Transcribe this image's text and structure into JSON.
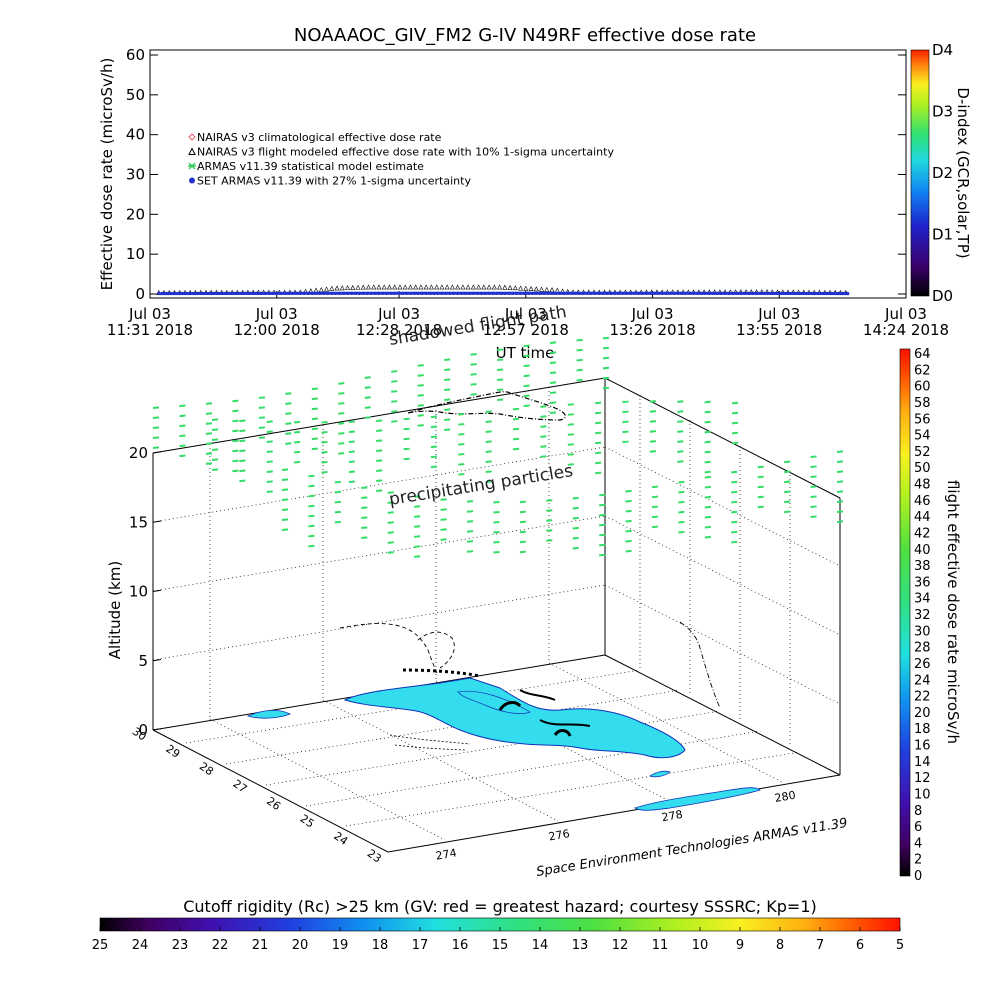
{
  "chart_data": [
    {
      "type": "line",
      "title": "NOAAAOC_GIV_FM2 G-IV    N49RF  effective dose rate",
      "ylabel": "Effective dose rate (microSv/h)",
      "xlabel": "UT time",
      "ylim": [
        0,
        60
      ],
      "yticks": [
        "0",
        "10",
        "20",
        "30",
        "40",
        "50",
        "60"
      ],
      "xticks": [
        {
          "date": "Jul 03",
          "time": "11:31",
          "year": "2018",
          "minutes": 0
        },
        {
          "date": "Jul 03",
          "time": "12:00",
          "year": "2018",
          "minutes": 29
        },
        {
          "date": "Jul 03",
          "time": "12:28",
          "year": "2018",
          "minutes": 57
        },
        {
          "date": "Jul 03",
          "time": "12:57",
          "year": "2018",
          "minutes": 86
        },
        {
          "date": "Jul 03",
          "time": "13:26",
          "year": "2018",
          "minutes": 115
        },
        {
          "date": "Jul 03",
          "time": "13:55",
          "year": "2018",
          "minutes": 144
        },
        {
          "date": "Jul 03",
          "time": "14:24",
          "year": "2018",
          "minutes": 173
        }
      ],
      "legend": [
        {
          "label": "NAIRAS v3 climatological effective dose rate",
          "color": "#e06070"
        },
        {
          "label": "NAIRAS v3 flight modeled effective dose rate with 10% 1-sigma uncertainty",
          "color": "#000000"
        },
        {
          "label": "ARMAS v11.39 statistical model estimate",
          "color": "#33cc55"
        },
        {
          "label": "SET ARMAS v11.39 with 27% 1-sigma uncertainty",
          "color": "#2233cc"
        }
      ],
      "series": [
        {
          "name": "NAIRAS v3 flight modeled effective dose rate with 10% 1-sigma uncertainty",
          "x": [
            2,
            34,
            42,
            50,
            80,
            92,
            96,
            100,
            104,
            140,
            160
          ],
          "y": [
            0.1,
            0.2,
            1.2,
            1.5,
            1.5,
            0.8,
            0.3,
            0.2,
            0.2,
            0.3,
            0.1
          ]
        },
        {
          "name": "SET ARMAS v11.39 with 27% 1-sigma uncertainty",
          "x": [
            2,
            40,
            80,
            120,
            160
          ],
          "y": [
            0.1,
            0.2,
            0.2,
            0.2,
            0.1
          ]
        }
      ],
      "colorbar": {
        "label": "D-index (GCR,solar,TP)",
        "ticks": [
          "D0",
          "D1",
          "D2",
          "D3",
          "D4"
        ],
        "tick_values": [
          0,
          1,
          2,
          3,
          4
        ],
        "value_range": [
          0,
          4
        ]
      }
    },
    {
      "type": "scatter",
      "notes": {
        "flight_path": "shadowed flight path",
        "particles": "precipitating particles"
      },
      "zlabel": "Altitude (km)",
      "zticks": [
        "0",
        "5",
        "10",
        "15",
        "20"
      ],
      "zlim": [
        0,
        20
      ],
      "lon_ticks": [
        "274",
        "276",
        "278",
        "280"
      ],
      "lat_ticks": [
        "30",
        "29",
        "28",
        "27",
        "26",
        "25",
        "24",
        "23"
      ],
      "credit": "Space Environment Technologies ARMAS v11.39",
      "colorbar": {
        "label": "flight effective dose rate microSv/h",
        "ticks": [
          "0",
          "2",
          "4",
          "6",
          "8",
          "10",
          "12",
          "14",
          "16",
          "18",
          "20",
          "22",
          "24",
          "26",
          "28",
          "30",
          "32",
          "34",
          "36",
          "38",
          "40",
          "42",
          "44",
          "46",
          "48",
          "50",
          "52",
          "54",
          "56",
          "58",
          "60",
          "62",
          "64"
        ],
        "value_range": [
          0,
          64
        ]
      }
    }
  ],
  "bottom_colorbar": {
    "title": "Cutoff rigidity (Rc) >25 km (GV: red = greatest hazard; courtesy SSSRC; Kp=1)",
    "ticks": [
      "25",
      "24",
      "23",
      "22",
      "21",
      "20",
      "19",
      "18",
      "17",
      "16",
      "15",
      "14",
      "13",
      "12",
      "11",
      "10",
      "9",
      "8",
      "7",
      "6",
      "5"
    ]
  },
  "colors": {
    "armas_green": "#33dd66",
    "map_cyan": "#33ddee",
    "series_blue": "#2233cc"
  }
}
